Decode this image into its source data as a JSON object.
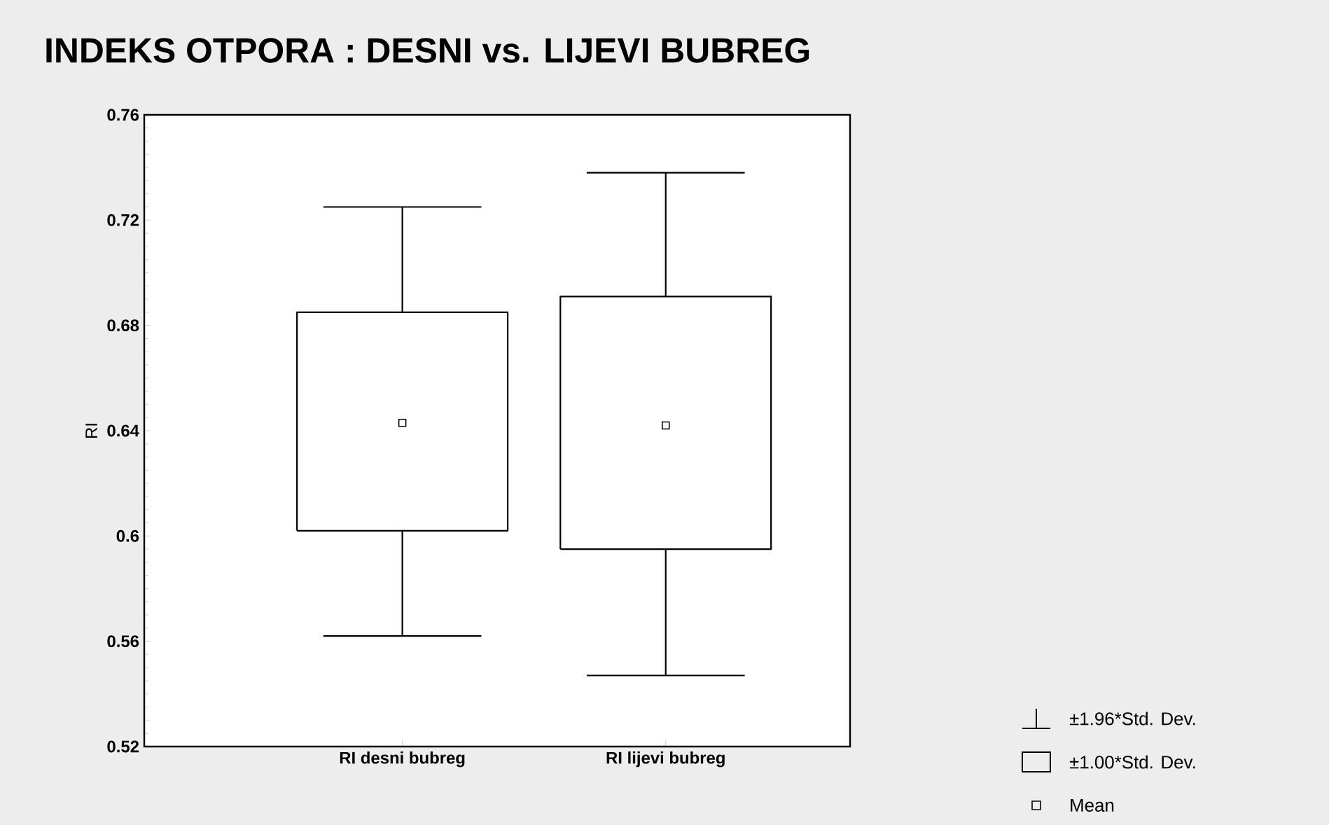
{
  "chart_data": {
    "type": "box",
    "title": "INDEKS OTPORA : DESNI vs. LIJEVI BUBREG",
    "ylabel": "RI",
    "categories": [
      "RI desni bubreg",
      "RI lijevi bubreg"
    ],
    "boxes": [
      {
        "low": 0.562,
        "q1": 0.602,
        "q3": 0.685,
        "high": 0.725,
        "mean": 0.643
      },
      {
        "low": 0.547,
        "q1": 0.595,
        "q3": 0.691,
        "high": 0.738,
        "mean": 0.642
      }
    ],
    "ylim": [
      0.52,
      0.76
    ],
    "yticks": [
      0.52,
      0.56,
      0.6,
      0.64,
      0.68,
      0.72,
      0.76
    ],
    "grid": false,
    "annotations": [
      "±1.96*Std. Dev.",
      "±1.00*Std. Dev.",
      "Mean"
    ]
  }
}
